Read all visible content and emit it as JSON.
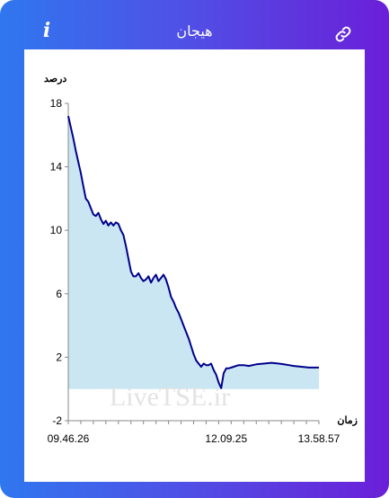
{
  "header": {
    "title": "هیجان",
    "info_icon": "info-icon",
    "link_icon": "link-icon"
  },
  "colors": {
    "header_gradient_start": "#2f77ef",
    "header_gradient_end": "#6b1fd8",
    "series_line": "#00008b",
    "area_fill": "#c9e6f2"
  },
  "watermark": "LiveTSE.ir",
  "chart_data": {
    "type": "area",
    "ylabel": "درصد",
    "xlabel": "زمان",
    "ylim": [
      -2,
      18
    ],
    "yticks": [
      -2,
      2,
      6,
      10,
      14,
      18
    ],
    "x_tick_labels": [
      "09.46.26",
      "12.09.25",
      "13.58.57"
    ],
    "x_tick_positions": [
      0,
      0.63,
      1
    ],
    "grid": false,
    "series": [
      {
        "points": [
          [
            0.0,
            17.2
          ],
          [
            0.01,
            16.5
          ],
          [
            0.02,
            15.8
          ],
          [
            0.03,
            15.0
          ],
          [
            0.04,
            14.3
          ],
          [
            0.05,
            13.6
          ],
          [
            0.06,
            12.8
          ],
          [
            0.07,
            12.0
          ],
          [
            0.08,
            11.8
          ],
          [
            0.09,
            11.4
          ],
          [
            0.1,
            11.0
          ],
          [
            0.11,
            10.9
          ],
          [
            0.12,
            11.1
          ],
          [
            0.13,
            10.7
          ],
          [
            0.14,
            10.4
          ],
          [
            0.15,
            10.6
          ],
          [
            0.16,
            10.3
          ],
          [
            0.17,
            10.5
          ],
          [
            0.18,
            10.3
          ],
          [
            0.19,
            10.5
          ],
          [
            0.2,
            10.4
          ],
          [
            0.21,
            10.0
          ],
          [
            0.22,
            9.7
          ],
          [
            0.23,
            9.0
          ],
          [
            0.24,
            8.2
          ],
          [
            0.25,
            7.4
          ],
          [
            0.26,
            7.1
          ],
          [
            0.27,
            7.1
          ],
          [
            0.28,
            7.3
          ],
          [
            0.29,
            7.0
          ],
          [
            0.3,
            6.8
          ],
          [
            0.31,
            6.9
          ],
          [
            0.32,
            7.1
          ],
          [
            0.33,
            6.7
          ],
          [
            0.34,
            7.0
          ],
          [
            0.35,
            7.2
          ],
          [
            0.36,
            6.8
          ],
          [
            0.37,
            7.0
          ],
          [
            0.38,
            7.2
          ],
          [
            0.39,
            6.9
          ],
          [
            0.4,
            6.4
          ],
          [
            0.41,
            5.8
          ],
          [
            0.42,
            5.5
          ],
          [
            0.43,
            5.1
          ],
          [
            0.44,
            4.8
          ],
          [
            0.45,
            4.4
          ],
          [
            0.46,
            4.0
          ],
          [
            0.47,
            3.6
          ],
          [
            0.48,
            3.2
          ],
          [
            0.49,
            2.7
          ],
          [
            0.5,
            2.2
          ],
          [
            0.51,
            1.8
          ],
          [
            0.52,
            1.6
          ],
          [
            0.53,
            1.4
          ],
          [
            0.54,
            1.6
          ],
          [
            0.55,
            1.5
          ],
          [
            0.56,
            1.5
          ],
          [
            0.57,
            1.6
          ],
          [
            0.58,
            1.2
          ],
          [
            0.59,
            0.9
          ],
          [
            0.6,
            0.4
          ],
          [
            0.61,
            0.05
          ],
          [
            0.62,
            1.0
          ],
          [
            0.63,
            1.3
          ],
          [
            0.64,
            1.3
          ],
          [
            0.66,
            1.4
          ],
          [
            0.68,
            1.5
          ],
          [
            0.7,
            1.5
          ],
          [
            0.72,
            1.45
          ],
          [
            0.75,
            1.55
          ],
          [
            0.78,
            1.6
          ],
          [
            0.81,
            1.65
          ],
          [
            0.84,
            1.6
          ],
          [
            0.86,
            1.55
          ],
          [
            0.88,
            1.5
          ],
          [
            0.9,
            1.45
          ],
          [
            0.93,
            1.4
          ],
          [
            0.96,
            1.35
          ],
          [
            1.0,
            1.35
          ]
        ]
      }
    ]
  }
}
